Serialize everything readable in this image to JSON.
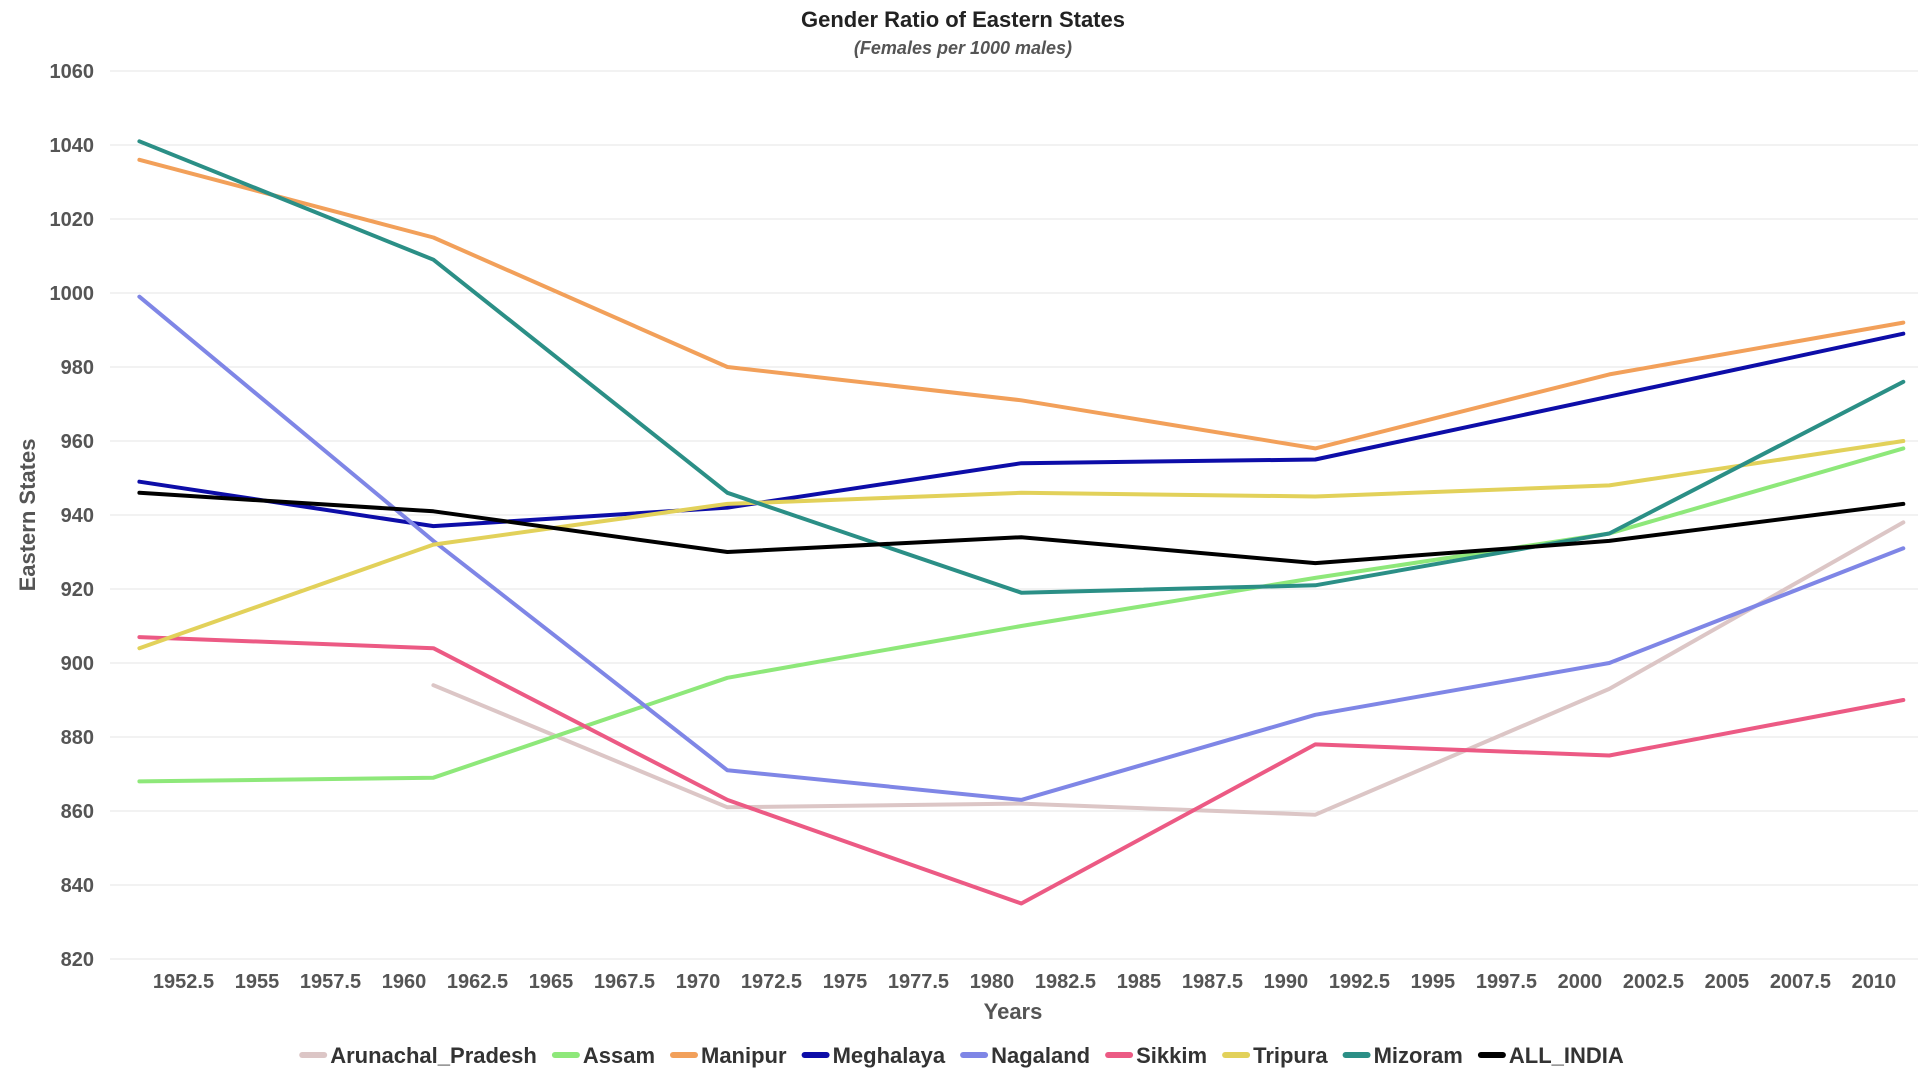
{
  "chart_data": {
    "type": "line",
    "title": "Gender Ratio of Eastern States",
    "subtitle": "(Females per 1000 males)",
    "xlabel": "Years",
    "ylabel": "Eastern States",
    "xlim": [
      1950,
      2011.5
    ],
    "ylim": [
      820,
      1060
    ],
    "x_ticks": [
      1952.5,
      1955,
      1957.5,
      1960,
      1962.5,
      1965,
      1967.5,
      1970,
      1972.5,
      1975,
      1977.5,
      1980,
      1982.5,
      1985,
      1987.5,
      1990,
      1992.5,
      1995,
      1997.5,
      2000,
      2002.5,
      2005,
      2007.5,
      2010
    ],
    "y_ticks": [
      820,
      840,
      860,
      880,
      900,
      920,
      940,
      960,
      980,
      1000,
      1020,
      1040,
      1060
    ],
    "grid": "horizontal",
    "legend_position": "bottom",
    "series": [
      {
        "name": "Arunachal_Pradesh",
        "color": "#dcc6c6",
        "x": [
          1961,
          1971,
          1981,
          1991,
          2001,
          2011
        ],
        "values": [
          894,
          861,
          862,
          859,
          893,
          938
        ]
      },
      {
        "name": "Assam",
        "color": "#8ee87a",
        "x": [
          1951,
          1961,
          1971,
          1981,
          1991,
          2001,
          2011
        ],
        "values": [
          868,
          869,
          896,
          910,
          923,
          935,
          958
        ]
      },
      {
        "name": "Manipur",
        "color": "#f2a05a",
        "x": [
          1951,
          1961,
          1971,
          1981,
          1991,
          2001,
          2011
        ],
        "values": [
          1036,
          1015,
          980,
          971,
          958,
          978,
          992
        ]
      },
      {
        "name": "Meghalaya",
        "color": "#0d0da8",
        "x": [
          1951,
          1961,
          1971,
          1981,
          1991,
          2001,
          2011
        ],
        "values": [
          949,
          937,
          942,
          954,
          955,
          972,
          989
        ]
      },
      {
        "name": "Nagaland",
        "color": "#7f86e6",
        "x": [
          1951,
          1961,
          1971,
          1981,
          1991,
          2001,
          2011
        ],
        "values": [
          999,
          933,
          871,
          863,
          886,
          900,
          931
        ]
      },
      {
        "name": "Sikkim",
        "color": "#ec5a84",
        "x": [
          1951,
          1961,
          1971,
          1981,
          1991,
          2001,
          2011
        ],
        "values": [
          907,
          904,
          863,
          835,
          878,
          875,
          890
        ]
      },
      {
        "name": "Tripura",
        "color": "#e2d15a",
        "x": [
          1951,
          1961,
          1971,
          1981,
          1991,
          2001,
          2011
        ],
        "values": [
          904,
          932,
          943,
          946,
          945,
          948,
          960
        ]
      },
      {
        "name": "Mizoram",
        "color": "#2b8f86",
        "x": [
          1951,
          1961,
          1971,
          1981,
          1991,
          2001,
          2011
        ],
        "values": [
          1041,
          1009,
          946,
          919,
          921,
          935,
          976
        ]
      },
      {
        "name": "ALL_INDIA",
        "color": "#000000",
        "x": [
          1951,
          1961,
          1971,
          1981,
          1991,
          2001,
          2011
        ],
        "values": [
          946,
          941,
          930,
          934,
          927,
          933,
          943
        ]
      }
    ]
  }
}
